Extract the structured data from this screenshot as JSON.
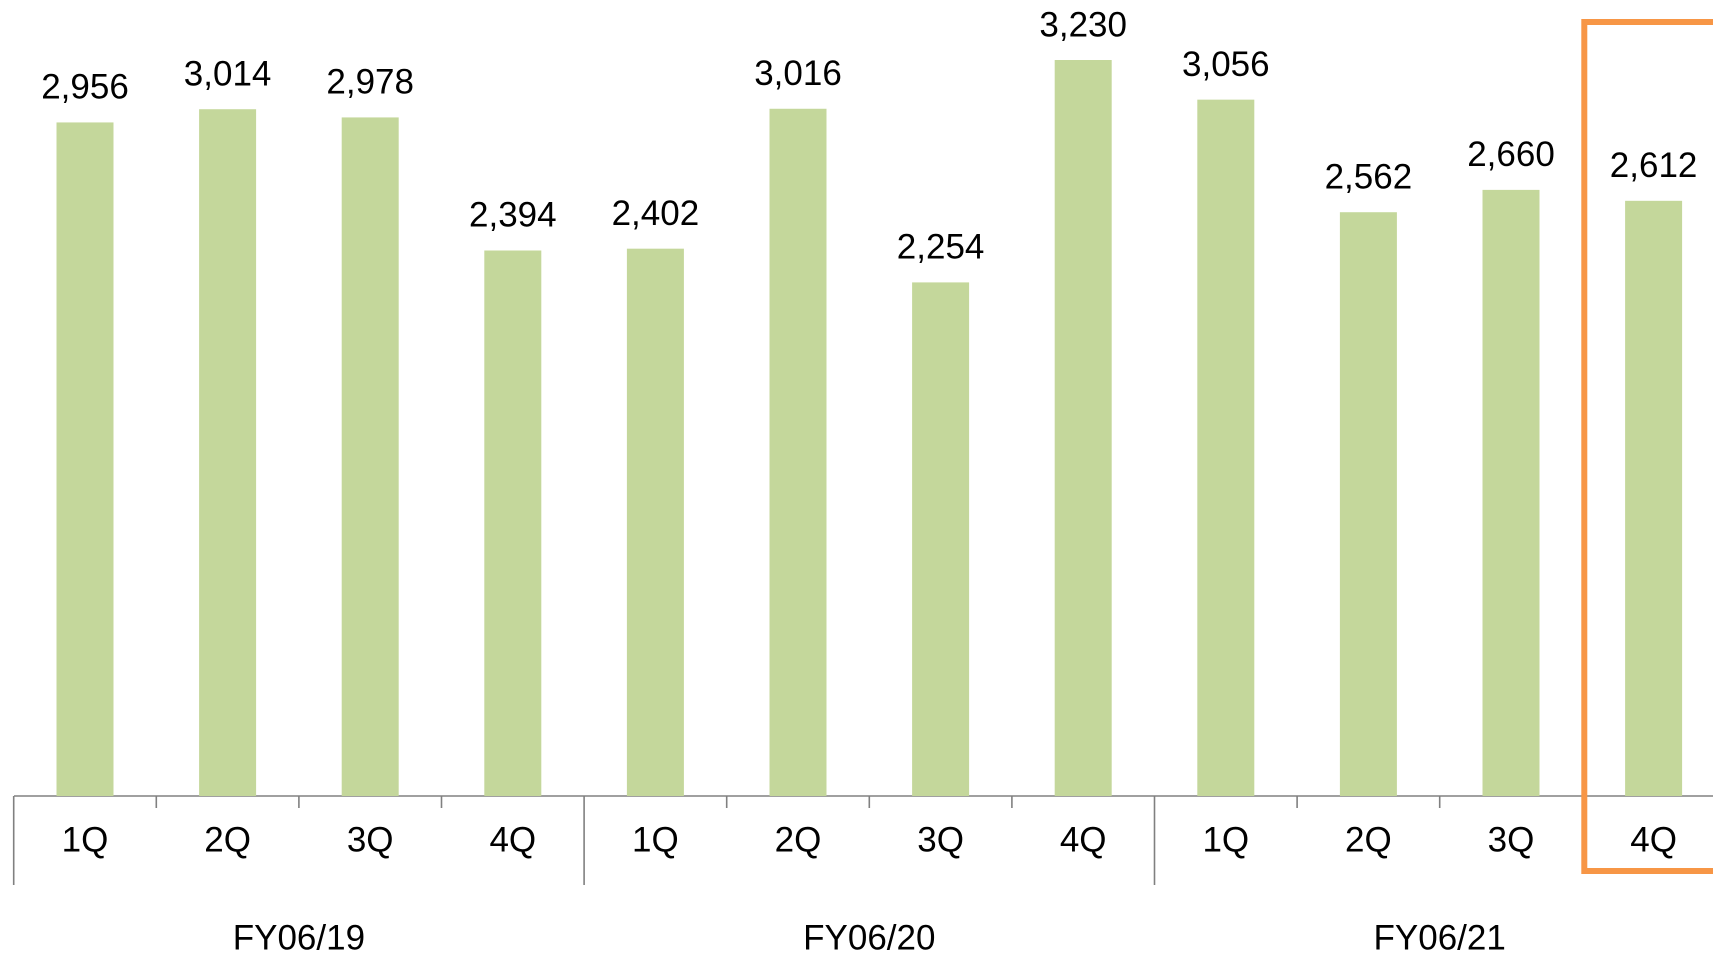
{
  "chart_data": {
    "type": "bar",
    "categories": [
      "1Q",
      "2Q",
      "3Q",
      "4Q",
      "1Q",
      "2Q",
      "3Q",
      "4Q",
      "1Q",
      "2Q",
      "3Q",
      "4Q"
    ],
    "groups": [
      "FY06/19",
      "FY06/20",
      "FY06/21"
    ],
    "values": [
      2956,
      3014,
      2978,
      2394,
      2402,
      3016,
      2254,
      3230,
      3056,
      2562,
      2660,
      2612
    ],
    "value_labels": [
      "2,956",
      "3,014",
      "2,978",
      "2,394",
      "2,402",
      "3,016",
      "2,254",
      "3,230",
      "3,056",
      "2,562",
      "2,660",
      "2,612"
    ],
    "color": "#c4d79b",
    "highlight_color": "#f79646"
  }
}
